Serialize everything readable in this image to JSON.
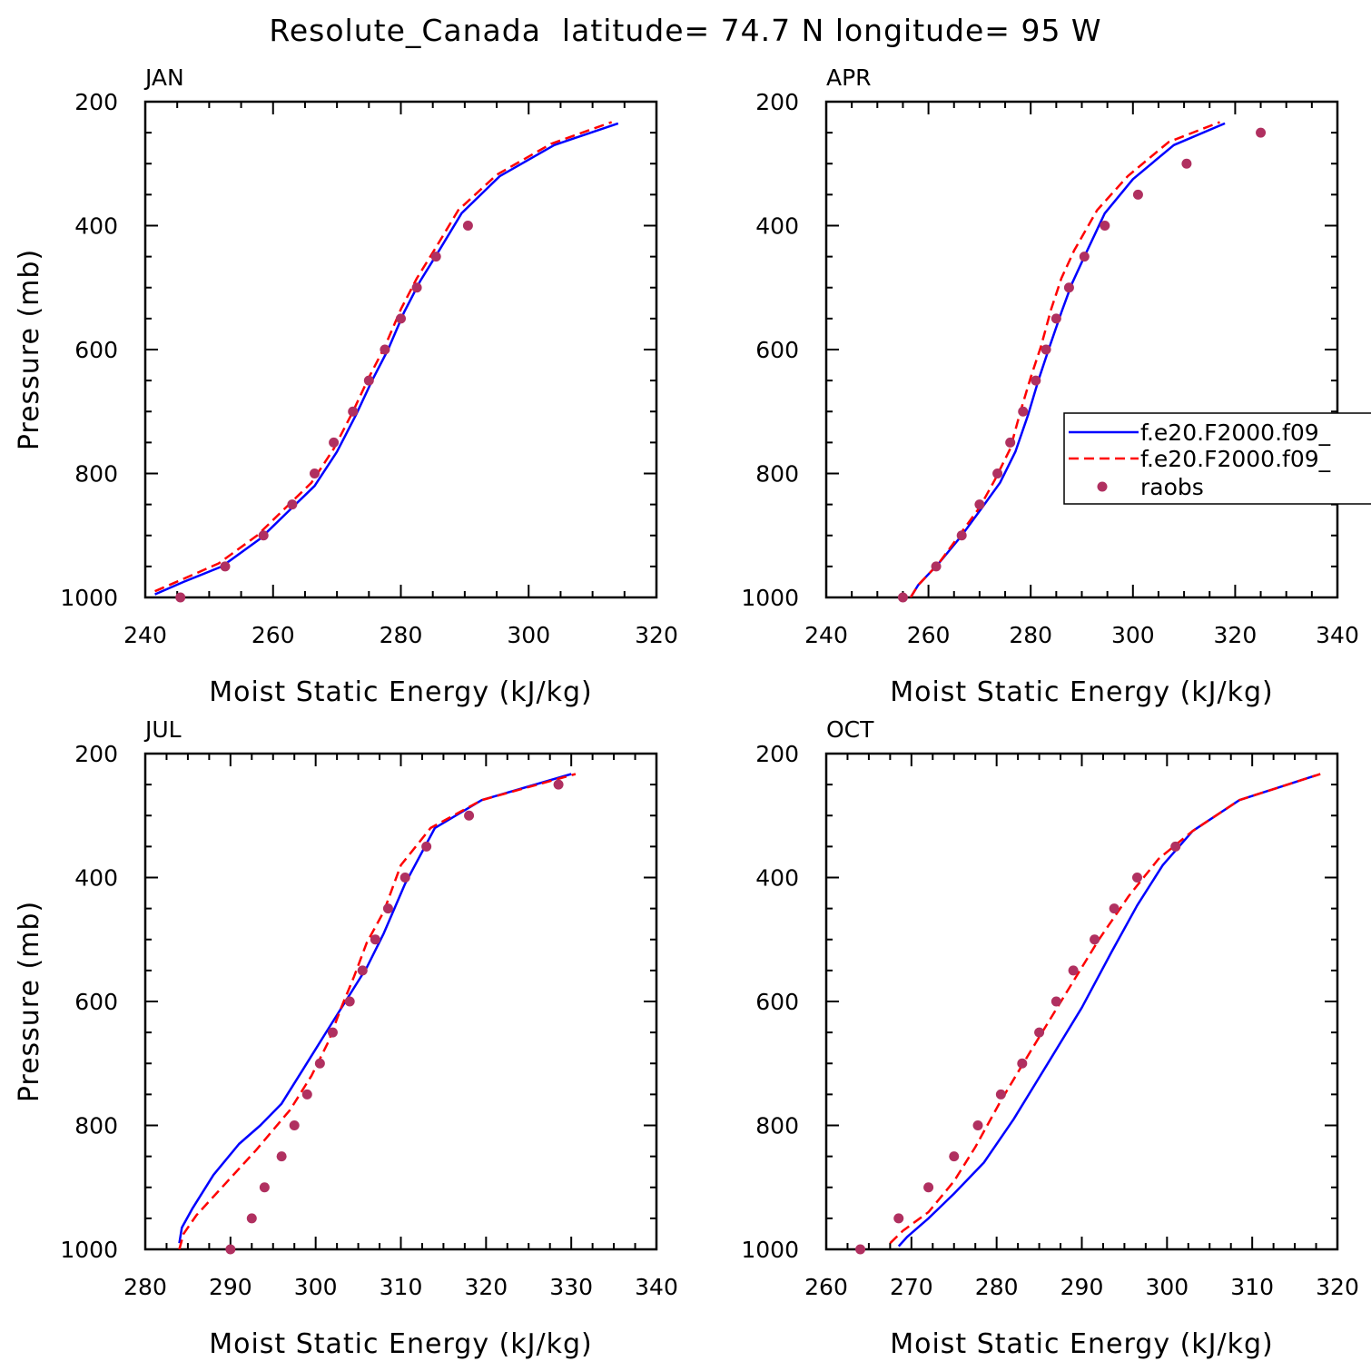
{
  "figure": {
    "title": "Resolute_Canada  latitude= 74.7 N longitude= 95 W"
  },
  "colors": {
    "series_solid": "#0000ff",
    "series_dashed": "#ff0000",
    "raobs": "#b03060"
  },
  "chart_data": [
    {
      "type": "line",
      "panel": "JAN",
      "xlabel": "Moist Static Energy (kJ/kg)",
      "ylabel": "Pressure (mb)",
      "xlim": [
        240,
        320
      ],
      "ylim": [
        1000,
        200
      ],
      "xticks": [
        240,
        260,
        280,
        300,
        320
      ],
      "yticks": [
        200,
        400,
        600,
        800,
        1000
      ],
      "legend": false,
      "series": [
        {
          "name": "f.e20.F2000.f09_",
          "style": "solid",
          "x": [
            241.5,
            246,
            252,
            258,
            262.5,
            266.5,
            270,
            273,
            275.5,
            278,
            280.5,
            283,
            286,
            289.5,
            295.5,
            304,
            314
          ],
          "y": [
            995,
            975,
            950,
            905,
            860,
            820,
            765,
            705,
            650,
            600,
            540,
            490,
            440,
            380,
            320,
            270,
            235
          ]
        },
        {
          "name": "f.e20.F2000.f09_",
          "style": "dashed",
          "x": [
            241.5,
            246,
            251.5,
            257.5,
            262,
            266,
            269.5,
            272.5,
            275,
            277.5,
            280,
            282.5,
            285.5,
            289,
            295,
            303.5,
            313
          ],
          "y": [
            990,
            970,
            945,
            900,
            855,
            815,
            760,
            700,
            645,
            595,
            535,
            485,
            435,
            375,
            318,
            268,
            233
          ]
        },
        {
          "name": "raobs",
          "style": "markers",
          "x": [
            245.5,
            252.5,
            258.5,
            263,
            266.5,
            269.5,
            272.5,
            275,
            277.5,
            280,
            282.5,
            285.5,
            290.5
          ],
          "y": [
            1000,
            950,
            900,
            850,
            800,
            750,
            700,
            650,
            600,
            550,
            500,
            450,
            400
          ]
        }
      ]
    },
    {
      "type": "line",
      "panel": "APR",
      "xlabel": "Moist Static Energy (kJ/kg)",
      "ylabel": "",
      "xlim": [
        240,
        340
      ],
      "ylim": [
        1000,
        200
      ],
      "xticks": [
        240,
        260,
        280,
        300,
        320,
        340
      ],
      "yticks": [
        200,
        400,
        600,
        800,
        1000
      ],
      "legend": true,
      "legend_position": "right",
      "series": [
        {
          "name": "f.e20.F2000.f09_",
          "style": "solid",
          "x": [
            256.5,
            258,
            262,
            266.5,
            270.5,
            274,
            277,
            279.5,
            281.5,
            283.5,
            286,
            288,
            290.5,
            294.5,
            300,
            308,
            318
          ],
          "y": [
            1000,
            980,
            945,
            900,
            855,
            815,
            765,
            705,
            650,
            600,
            540,
            495,
            450,
            380,
            325,
            270,
            235
          ]
        },
        {
          "name": "f.e20.F2000.f09_",
          "style": "dashed",
          "x": [
            256.5,
            258,
            262,
            266,
            270,
            273,
            276,
            278,
            280,
            282,
            284,
            286,
            288.5,
            293,
            299,
            307,
            317
          ],
          "y": [
            1000,
            980,
            945,
            900,
            855,
            810,
            760,
            700,
            645,
            595,
            535,
            485,
            440,
            375,
            320,
            265,
            233
          ]
        },
        {
          "name": "raobs",
          "style": "markers",
          "x": [
            255,
            261.5,
            266.5,
            270,
            273.5,
            276,
            278.5,
            281,
            283,
            285,
            287.5,
            290.5,
            294.5,
            301,
            310.5,
            325
          ],
          "y": [
            1000,
            950,
            900,
            850,
            800,
            750,
            700,
            650,
            600,
            550,
            500,
            450,
            400,
            350,
            300,
            250
          ]
        }
      ]
    },
    {
      "type": "line",
      "panel": "JUL",
      "xlabel": "Moist Static Energy (kJ/kg)",
      "ylabel": "Pressure (mb)",
      "xlim": [
        280,
        340
      ],
      "ylim": [
        1000,
        200
      ],
      "xticks": [
        280,
        290,
        300,
        310,
        320,
        330,
        340
      ],
      "yticks": [
        200,
        400,
        600,
        800,
        1000
      ],
      "legend": false,
      "series": [
        {
          "name": "f.e20.F2000.f09_",
          "style": "solid",
          "x": [
            284,
            284.3,
            285.5,
            288,
            291,
            293.5,
            296,
            298.5,
            301,
            303.5,
            306,
            308,
            310.5,
            314,
            319.5,
            330
          ],
          "y": [
            990,
            965,
            935,
            880,
            830,
            800,
            765,
            710,
            655,
            600,
            545,
            490,
            410,
            320,
            275,
            233
          ]
        },
        {
          "name": "f.e20.F2000.f09_",
          "style": "dashed",
          "x": [
            284,
            284.5,
            286,
            289,
            293,
            297,
            299.5,
            301.5,
            303,
            304.5,
            306,
            308,
            310,
            313.5,
            319.5,
            330.5
          ],
          "y": [
            1000,
            975,
            945,
            900,
            840,
            775,
            720,
            665,
            610,
            560,
            505,
            455,
            380,
            320,
            275,
            233
          ]
        },
        {
          "name": "raobs",
          "style": "markers",
          "x": [
            290,
            292.5,
            294,
            296,
            297.5,
            299,
            300.5,
            302,
            304,
            305.5,
            307,
            308.5,
            310.5,
            313,
            318,
            328.5
          ],
          "y": [
            1000,
            950,
            900,
            850,
            800,
            750,
            700,
            650,
            600,
            550,
            500,
            450,
            400,
            350,
            300,
            250
          ]
        }
      ]
    },
    {
      "type": "line",
      "panel": "OCT",
      "xlabel": "Moist Static Energy (kJ/kg)",
      "ylabel": "",
      "xlim": [
        260,
        320
      ],
      "ylim": [
        1000,
        200
      ],
      "xticks": [
        260,
        270,
        280,
        290,
        300,
        310,
        320
      ],
      "yticks": [
        200,
        400,
        600,
        800,
        1000
      ],
      "legend": false,
      "series": [
        {
          "name": "f.e20.F2000.f09_",
          "style": "solid",
          "x": [
            268.5,
            269.5,
            272,
            275,
            278.5,
            282,
            286,
            290,
            293.5,
            296.5,
            299.5,
            303,
            308.5,
            317.5
          ],
          "y": [
            995,
            980,
            950,
            910,
            860,
            790,
            700,
            610,
            520,
            445,
            380,
            325,
            275,
            235
          ]
        },
        {
          "name": "f.e20.F2000.f09_",
          "style": "dashed",
          "x": [
            267.5,
            269,
            272,
            275,
            277.5,
            280.5,
            284,
            288,
            292,
            295.5,
            299,
            303,
            308.5,
            318
          ],
          "y": [
            990,
            970,
            940,
            890,
            835,
            760,
            680,
            590,
            500,
            430,
            370,
            325,
            275,
            233
          ]
        },
        {
          "name": "raobs",
          "style": "markers",
          "x": [
            264,
            268.5,
            272,
            275,
            277.8,
            280.5,
            283,
            285,
            287,
            289,
            291.5,
            293.8,
            296.5,
            301
          ],
          "y": [
            1000,
            950,
            900,
            850,
            800,
            750,
            700,
            650,
            600,
            550,
            500,
            450,
            400,
            350
          ]
        }
      ]
    }
  ]
}
